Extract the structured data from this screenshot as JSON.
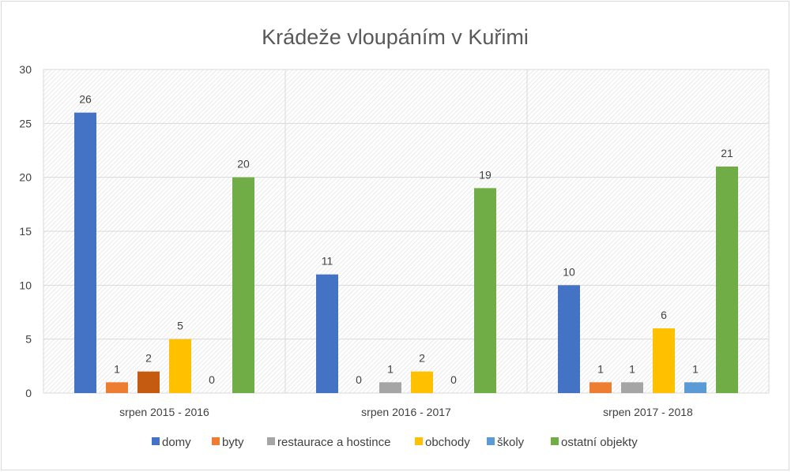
{
  "chart_data": {
    "type": "bar",
    "title": "Krádeže vloupáním v Kuřimi",
    "xlabel": "",
    "ylabel": "",
    "ylim": [
      0,
      30
    ],
    "yticks": [
      0,
      5,
      10,
      15,
      20,
      25,
      30
    ],
    "grid": true,
    "legend_position": "bottom",
    "categories": [
      "srpen 2015 - 2016",
      "srpen 2016 - 2017",
      "srpen 2017 - 2018"
    ],
    "series": [
      {
        "name": "domy",
        "color": "#4472C4",
        "values": [
          26,
          11,
          10
        ]
      },
      {
        "name": "byty",
        "color": "#ED7D31",
        "values": [
          1,
          0,
          1
        ]
      },
      {
        "name": "restaurace a hostince",
        "color": "#A5A5A5",
        "values": [
          2,
          1,
          1
        ],
        "point_colors": [
          "#C55A11",
          null,
          null
        ]
      },
      {
        "name": "obchody",
        "color": "#FFC000",
        "values": [
          5,
          2,
          6
        ]
      },
      {
        "name": "školy",
        "color": "#5B9BD5",
        "values": [
          0,
          0,
          1
        ]
      },
      {
        "name": "ostatní objekty",
        "color": "#70AD47",
        "values": [
          20,
          19,
          21
        ]
      }
    ]
  }
}
